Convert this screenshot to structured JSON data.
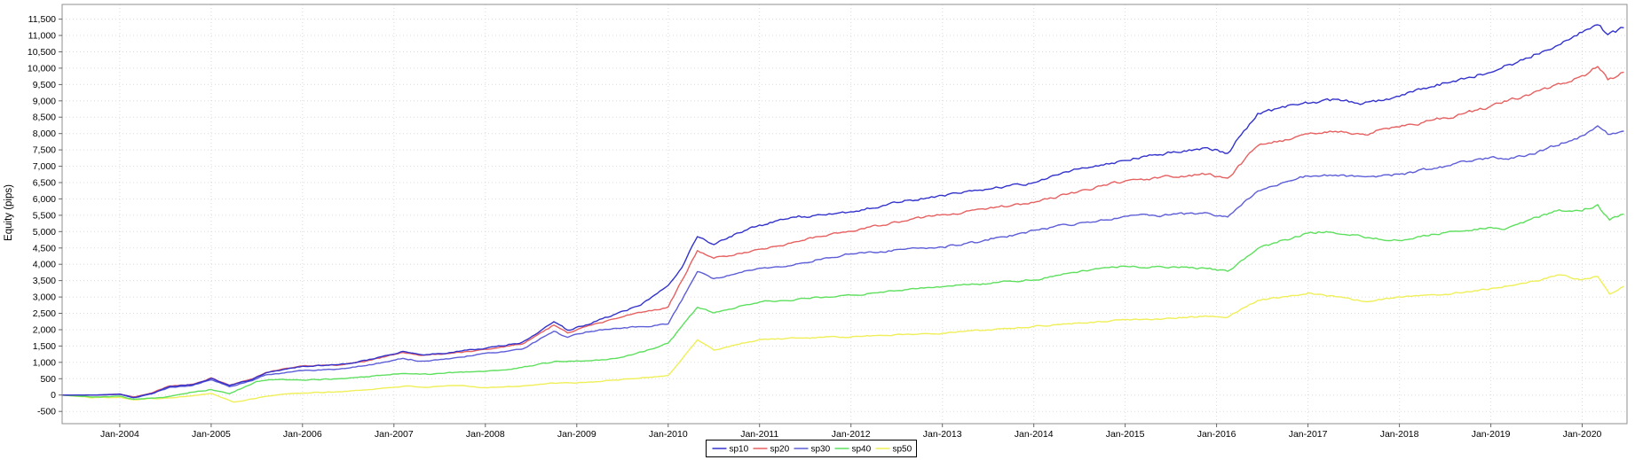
{
  "chart_data": {
    "type": "line",
    "title": "",
    "xlabel": "",
    "ylabel": "Equity (pips)",
    "grid": "dotted",
    "ylim": [
      -875,
      11950
    ],
    "xlim_years": [
      2003.37,
      2020.49
    ],
    "y_ticks": [
      -500,
      0,
      500,
      1000,
      1500,
      2000,
      2500,
      3000,
      3500,
      4000,
      4500,
      5000,
      5500,
      6000,
      6500,
      7000,
      7500,
      8000,
      8500,
      9000,
      9500,
      10000,
      10500,
      11000,
      11500
    ],
    "x_ticks": [
      {
        "year": 2004,
        "label": "Jan-2004"
      },
      {
        "year": 2005,
        "label": "Jan-2005"
      },
      {
        "year": 2006,
        "label": "Jan-2006"
      },
      {
        "year": 2007,
        "label": "Jan-2007"
      },
      {
        "year": 2008,
        "label": "Jan-2008"
      },
      {
        "year": 2009,
        "label": "Jan-2009"
      },
      {
        "year": 2010,
        "label": "Jan-2010"
      },
      {
        "year": 2011,
        "label": "Jan-2011"
      },
      {
        "year": 2012,
        "label": "Jan-2012"
      },
      {
        "year": 2013,
        "label": "Jan-2013"
      },
      {
        "year": 2014,
        "label": "Jan-2014"
      },
      {
        "year": 2015,
        "label": "Jan-2015"
      },
      {
        "year": 2016,
        "label": "Jan-2016"
      },
      {
        "year": 2017,
        "label": "Jan-2017"
      },
      {
        "year": 2018,
        "label": "Jan-2018"
      },
      {
        "year": 2019,
        "label": "Jan-2019"
      },
      {
        "year": 2020,
        "label": "Jan-2020"
      }
    ],
    "legend": {
      "position": "bottom-center",
      "entries": [
        "sp10",
        "sp20",
        "sp30",
        "sp40",
        "sp50"
      ]
    },
    "series": [
      {
        "name": "sp10",
        "color": "#3333CC",
        "points": [
          [
            2003.37,
            0
          ],
          [
            2003.75,
            0
          ],
          [
            2004.0,
            30
          ],
          [
            2004.15,
            -70
          ],
          [
            2004.35,
            50
          ],
          [
            2004.55,
            270
          ],
          [
            2004.8,
            320
          ],
          [
            2005.0,
            510
          ],
          [
            2005.2,
            290
          ],
          [
            2005.45,
            480
          ],
          [
            2005.6,
            680
          ],
          [
            2006.0,
            880
          ],
          [
            2006.4,
            930
          ],
          [
            2006.7,
            1060
          ],
          [
            2007.1,
            1340
          ],
          [
            2007.3,
            1240
          ],
          [
            2007.6,
            1300
          ],
          [
            2008.0,
            1430
          ],
          [
            2008.4,
            1610
          ],
          [
            2008.75,
            2240
          ],
          [
            2008.9,
            1990
          ],
          [
            2009.1,
            2150
          ],
          [
            2009.4,
            2450
          ],
          [
            2009.7,
            2750
          ],
          [
            2010.0,
            3350
          ],
          [
            2010.15,
            3900
          ],
          [
            2010.32,
            4850
          ],
          [
            2010.5,
            4600
          ],
          [
            2010.75,
            4950
          ],
          [
            2011.0,
            5210
          ],
          [
            2011.4,
            5430
          ],
          [
            2011.7,
            5500
          ],
          [
            2012.0,
            5600
          ],
          [
            2012.5,
            5890
          ],
          [
            2013.0,
            6110
          ],
          [
            2013.5,
            6290
          ],
          [
            2014.0,
            6500
          ],
          [
            2014.5,
            6920
          ],
          [
            2015.0,
            7180
          ],
          [
            2015.5,
            7420
          ],
          [
            2015.9,
            7560
          ],
          [
            2016.12,
            7400
          ],
          [
            2016.45,
            8620
          ],
          [
            2016.75,
            8780
          ],
          [
            2017.0,
            8920
          ],
          [
            2017.3,
            9030
          ],
          [
            2017.6,
            8910
          ],
          [
            2018.0,
            9140
          ],
          [
            2018.5,
            9560
          ],
          [
            2019.0,
            9870
          ],
          [
            2019.5,
            10430
          ],
          [
            2020.0,
            11090
          ],
          [
            2020.17,
            11330
          ],
          [
            2020.28,
            11030
          ],
          [
            2020.45,
            11230
          ]
        ]
      },
      {
        "name": "sp20",
        "color": "#E66161",
        "points": [
          [
            2003.37,
            0
          ],
          [
            2003.75,
            0
          ],
          [
            2004.0,
            30
          ],
          [
            2004.15,
            -60
          ],
          [
            2004.35,
            60
          ],
          [
            2004.55,
            280
          ],
          [
            2004.8,
            330
          ],
          [
            2005.0,
            520
          ],
          [
            2005.2,
            300
          ],
          [
            2005.45,
            490
          ],
          [
            2005.6,
            690
          ],
          [
            2006.0,
            890
          ],
          [
            2006.4,
            920
          ],
          [
            2006.7,
            1040
          ],
          [
            2007.1,
            1300
          ],
          [
            2007.3,
            1210
          ],
          [
            2007.6,
            1270
          ],
          [
            2008.0,
            1400
          ],
          [
            2008.4,
            1560
          ],
          [
            2008.75,
            2140
          ],
          [
            2008.9,
            1900
          ],
          [
            2009.1,
            2090
          ],
          [
            2009.4,
            2330
          ],
          [
            2009.7,
            2520
          ],
          [
            2010.0,
            2700
          ],
          [
            2010.15,
            3500
          ],
          [
            2010.32,
            4420
          ],
          [
            2010.5,
            4180
          ],
          [
            2010.75,
            4320
          ],
          [
            2011.0,
            4460
          ],
          [
            2011.4,
            4680
          ],
          [
            2011.7,
            4870
          ],
          [
            2012.0,
            5010
          ],
          [
            2012.5,
            5290
          ],
          [
            2013.0,
            5520
          ],
          [
            2013.5,
            5710
          ],
          [
            2014.0,
            5890
          ],
          [
            2014.5,
            6240
          ],
          [
            2015.0,
            6560
          ],
          [
            2015.5,
            6690
          ],
          [
            2015.9,
            6760
          ],
          [
            2016.12,
            6640
          ],
          [
            2016.45,
            7630
          ],
          [
            2016.75,
            7820
          ],
          [
            2017.0,
            7980
          ],
          [
            2017.3,
            8070
          ],
          [
            2017.6,
            8000
          ],
          [
            2018.0,
            8200
          ],
          [
            2018.5,
            8490
          ],
          [
            2019.0,
            8830
          ],
          [
            2019.5,
            9290
          ],
          [
            2020.0,
            9780
          ],
          [
            2020.17,
            10050
          ],
          [
            2020.28,
            9630
          ],
          [
            2020.45,
            9870
          ]
        ]
      },
      {
        "name": "sp30",
        "color": "#5D5DD8",
        "points": [
          [
            2003.37,
            0
          ],
          [
            2003.75,
            0
          ],
          [
            2004.0,
            20
          ],
          [
            2004.15,
            -80
          ],
          [
            2004.35,
            40
          ],
          [
            2004.55,
            240
          ],
          [
            2004.8,
            290
          ],
          [
            2005.0,
            470
          ],
          [
            2005.2,
            260
          ],
          [
            2005.45,
            440
          ],
          [
            2005.6,
            620
          ],
          [
            2006.0,
            740
          ],
          [
            2006.4,
            800
          ],
          [
            2006.7,
            900
          ],
          [
            2007.1,
            1120
          ],
          [
            2007.3,
            1040
          ],
          [
            2007.6,
            1110
          ],
          [
            2008.0,
            1270
          ],
          [
            2008.4,
            1400
          ],
          [
            2008.75,
            1950
          ],
          [
            2008.9,
            1760
          ],
          [
            2009.1,
            1940
          ],
          [
            2009.4,
            2040
          ],
          [
            2009.7,
            2090
          ],
          [
            2010.0,
            2170
          ],
          [
            2010.15,
            2900
          ],
          [
            2010.32,
            3780
          ],
          [
            2010.5,
            3560
          ],
          [
            2010.75,
            3720
          ],
          [
            2011.0,
            3870
          ],
          [
            2011.4,
            4010
          ],
          [
            2011.7,
            4180
          ],
          [
            2012.0,
            4320
          ],
          [
            2012.5,
            4440
          ],
          [
            2013.0,
            4530
          ],
          [
            2013.5,
            4720
          ],
          [
            2014.0,
            5030
          ],
          [
            2014.5,
            5260
          ],
          [
            2015.0,
            5470
          ],
          [
            2015.5,
            5510
          ],
          [
            2015.9,
            5580
          ],
          [
            2016.12,
            5450
          ],
          [
            2016.45,
            6240
          ],
          [
            2016.75,
            6520
          ],
          [
            2017.0,
            6700
          ],
          [
            2017.3,
            6740
          ],
          [
            2017.6,
            6690
          ],
          [
            2018.0,
            6750
          ],
          [
            2018.5,
            6990
          ],
          [
            2019.0,
            7290
          ],
          [
            2019.25,
            7240
          ],
          [
            2019.6,
            7520
          ],
          [
            2020.0,
            7930
          ],
          [
            2020.17,
            8240
          ],
          [
            2020.28,
            7970
          ],
          [
            2020.45,
            8070
          ]
        ]
      },
      {
        "name": "sp40",
        "color": "#5EDF5E",
        "points": [
          [
            2003.37,
            0
          ],
          [
            2003.7,
            -60
          ],
          [
            2004.0,
            -30
          ],
          [
            2004.15,
            -130
          ],
          [
            2004.5,
            -60
          ],
          [
            2004.8,
            90
          ],
          [
            2005.0,
            170
          ],
          [
            2005.2,
            40
          ],
          [
            2005.5,
            420
          ],
          [
            2005.7,
            470
          ],
          [
            2006.0,
            460
          ],
          [
            2006.4,
            500
          ],
          [
            2006.7,
            560
          ],
          [
            2007.1,
            660
          ],
          [
            2007.4,
            630
          ],
          [
            2007.7,
            700
          ],
          [
            2008.0,
            730
          ],
          [
            2008.4,
            840
          ],
          [
            2008.75,
            1020
          ],
          [
            2009.0,
            1050
          ],
          [
            2009.3,
            1080
          ],
          [
            2009.6,
            1220
          ],
          [
            2010.0,
            1580
          ],
          [
            2010.15,
            2100
          ],
          [
            2010.32,
            2690
          ],
          [
            2010.5,
            2510
          ],
          [
            2010.75,
            2680
          ],
          [
            2011.0,
            2850
          ],
          [
            2011.4,
            2930
          ],
          [
            2011.7,
            2990
          ],
          [
            2012.0,
            3050
          ],
          [
            2012.5,
            3190
          ],
          [
            2013.0,
            3310
          ],
          [
            2013.5,
            3410
          ],
          [
            2014.0,
            3530
          ],
          [
            2014.5,
            3780
          ],
          [
            2015.0,
            3940
          ],
          [
            2015.5,
            3910
          ],
          [
            2015.9,
            3870
          ],
          [
            2016.12,
            3790
          ],
          [
            2016.45,
            4480
          ],
          [
            2016.75,
            4760
          ],
          [
            2017.0,
            4950
          ],
          [
            2017.2,
            5010
          ],
          [
            2017.6,
            4840
          ],
          [
            2018.0,
            4720
          ],
          [
            2018.35,
            4930
          ],
          [
            2018.7,
            5010
          ],
          [
            2019.0,
            5120
          ],
          [
            2019.15,
            5070
          ],
          [
            2019.5,
            5440
          ],
          [
            2019.75,
            5670
          ],
          [
            2020.0,
            5620
          ],
          [
            2020.17,
            5840
          ],
          [
            2020.3,
            5350
          ],
          [
            2020.45,
            5520
          ]
        ]
      },
      {
        "name": "sp50",
        "color": "#EFEF5A",
        "points": [
          [
            2003.37,
            0
          ],
          [
            2003.7,
            -80
          ],
          [
            2004.0,
            -60
          ],
          [
            2004.15,
            -140
          ],
          [
            2004.5,
            -90
          ],
          [
            2004.8,
            -20
          ],
          [
            2005.0,
            50
          ],
          [
            2005.25,
            -220
          ],
          [
            2005.55,
            -60
          ],
          [
            2005.8,
            30
          ],
          [
            2006.0,
            60
          ],
          [
            2006.4,
            100
          ],
          [
            2006.7,
            160
          ],
          [
            2007.1,
            270
          ],
          [
            2007.4,
            240
          ],
          [
            2007.7,
            290
          ],
          [
            2008.0,
            230
          ],
          [
            2008.4,
            280
          ],
          [
            2008.75,
            360
          ],
          [
            2009.0,
            370
          ],
          [
            2009.3,
            430
          ],
          [
            2009.6,
            500
          ],
          [
            2010.0,
            600
          ],
          [
            2010.15,
            1100
          ],
          [
            2010.32,
            1690
          ],
          [
            2010.5,
            1370
          ],
          [
            2010.75,
            1550
          ],
          [
            2011.0,
            1700
          ],
          [
            2011.4,
            1740
          ],
          [
            2011.7,
            1760
          ],
          [
            2012.0,
            1780
          ],
          [
            2012.5,
            1850
          ],
          [
            2013.0,
            1900
          ],
          [
            2013.5,
            2000
          ],
          [
            2014.0,
            2100
          ],
          [
            2014.5,
            2210
          ],
          [
            2015.0,
            2300
          ],
          [
            2015.5,
            2350
          ],
          [
            2015.9,
            2410
          ],
          [
            2016.12,
            2380
          ],
          [
            2016.45,
            2900
          ],
          [
            2016.75,
            3020
          ],
          [
            2017.0,
            3130
          ],
          [
            2017.3,
            3010
          ],
          [
            2017.6,
            2870
          ],
          [
            2018.0,
            3000
          ],
          [
            2018.5,
            3090
          ],
          [
            2019.0,
            3260
          ],
          [
            2019.5,
            3490
          ],
          [
            2019.75,
            3670
          ],
          [
            2020.0,
            3530
          ],
          [
            2020.17,
            3620
          ],
          [
            2020.3,
            3080
          ],
          [
            2020.45,
            3310
          ]
        ]
      }
    ]
  },
  "colors": {
    "background": "#FFFFFF",
    "grid": "#DCDCDC",
    "plot_border": "#8F8F8F",
    "tick": "#666666",
    "text": "#000000",
    "legend_border": "#000000"
  }
}
